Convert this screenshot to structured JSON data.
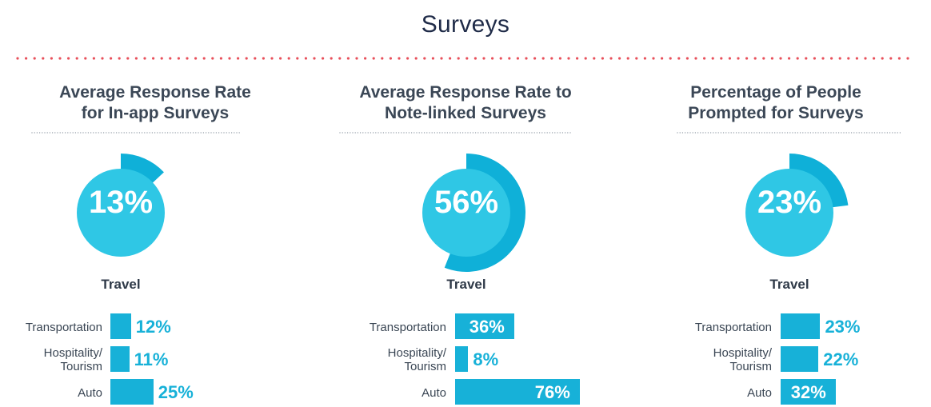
{
  "title": "Surveys",
  "colors": {
    "bar": "#17b1d8",
    "donut_inner": "#2fc7e5",
    "donut_outer": "#0fb0d8",
    "divider_red": "#e8505b",
    "divider_gray": "#9aa3ad"
  },
  "chart_data": [
    {
      "type": "pie",
      "title": "Average Response Rate for In-app Surveys",
      "title_lines": [
        "Average Response Rate",
        "for In-app Surveys"
      ],
      "donut_value": 13,
      "donut_label": "13%",
      "category": "Travel",
      "type_secondary": "bar",
      "categories": [
        "Transportation",
        "Hospitality/ Tourism",
        "Auto"
      ],
      "category_lines": [
        [
          "Transportation"
        ],
        [
          "Hospitality/",
          "Tourism"
        ],
        [
          "Auto"
        ]
      ],
      "values": [
        12,
        11,
        25
      ],
      "value_labels": [
        "12%",
        "11%",
        "25%"
      ]
    },
    {
      "type": "pie",
      "title": "Average Response Rate to Note-linked Surveys",
      "title_lines": [
        "Average Response Rate to",
        "Note-linked Surveys"
      ],
      "donut_value": 56,
      "donut_label": "56%",
      "category": "Travel",
      "type_secondary": "bar",
      "categories": [
        "Transportation",
        "Hospitality/ Tourism",
        "Auto"
      ],
      "category_lines": [
        [
          "Transportation"
        ],
        [
          "Hospitality/",
          "Tourism"
        ],
        [
          "Auto"
        ]
      ],
      "values": [
        36,
        8,
        76
      ],
      "value_labels": [
        "36%",
        "8%",
        "76%"
      ]
    },
    {
      "type": "pie",
      "title": "Percentage of People Prompted for Surveys",
      "title_lines": [
        "Percentage of People",
        "Prompted for Surveys"
      ],
      "donut_value": 23,
      "donut_label": "23%",
      "category": "Travel",
      "type_secondary": "bar",
      "categories": [
        "Transportation",
        "Hospitality/ Tourism",
        "Auto"
      ],
      "category_lines": [
        [
          "Transportation"
        ],
        [
          "Hospitality/",
          "Tourism"
        ],
        [
          "Auto"
        ]
      ],
      "values": [
        23,
        22,
        32
      ],
      "value_labels": [
        "23%",
        "22%",
        "32%"
      ]
    }
  ]
}
